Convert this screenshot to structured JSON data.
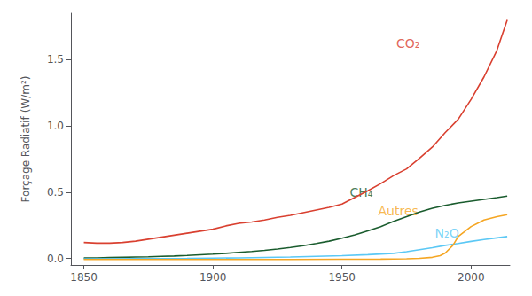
{
  "chart_data": {
    "type": "line",
    "ylabel": "Forçage Radiatif (W/m²)",
    "xlim": [
      1845,
      2015
    ],
    "ylim": [
      -0.05,
      1.85
    ],
    "xticks": [
      1850,
      1900,
      1950,
      2000
    ],
    "yticks": [
      {
        "value": 0.0,
        "label": "0.0"
      },
      0.5,
      {
        "value": 1.0,
        "label": "1.0"
      },
      1.5
    ],
    "grid": false,
    "series": [
      {
        "name": "CO₂",
        "color": "#d94030",
        "x": [
          1850,
          1855,
          1860,
          1865,
          1870,
          1875,
          1880,
          1885,
          1890,
          1895,
          1900,
          1905,
          1910,
          1915,
          1920,
          1925,
          1930,
          1935,
          1940,
          1945,
          1950,
          1955,
          1960,
          1965,
          1970,
          1975,
          1980,
          1985,
          1990,
          1995,
          2000,
          2005,
          2010,
          2014
        ],
        "values": [
          0.12,
          0.115,
          0.115,
          0.12,
          0.13,
          0.145,
          0.16,
          0.175,
          0.19,
          0.205,
          0.22,
          0.245,
          0.265,
          0.275,
          0.29,
          0.31,
          0.325,
          0.345,
          0.365,
          0.385,
          0.41,
          0.46,
          0.51,
          0.565,
          0.625,
          0.675,
          0.755,
          0.84,
          0.95,
          1.05,
          1.2,
          1.37,
          1.57,
          1.8
        ]
      },
      {
        "name": "CH₄",
        "color": "#1a5c2e",
        "x": [
          1850,
          1855,
          1860,
          1865,
          1870,
          1875,
          1880,
          1885,
          1890,
          1895,
          1900,
          1905,
          1910,
          1915,
          1920,
          1925,
          1930,
          1935,
          1940,
          1945,
          1950,
          1955,
          1960,
          1965,
          1970,
          1975,
          1980,
          1985,
          1990,
          1995,
          2000,
          2005,
          2010,
          2014
        ],
        "values": [
          0.003,
          0.004,
          0.006,
          0.008,
          0.01,
          0.012,
          0.015,
          0.018,
          0.022,
          0.027,
          0.032,
          0.038,
          0.045,
          0.052,
          0.06,
          0.07,
          0.082,
          0.096,
          0.112,
          0.13,
          0.152,
          0.178,
          0.208,
          0.24,
          0.28,
          0.315,
          0.35,
          0.378,
          0.4,
          0.418,
          0.432,
          0.445,
          0.458,
          0.47
        ]
      },
      {
        "name": "N₂O",
        "color": "#5bc8f5",
        "x": [
          1850,
          1860,
          1870,
          1880,
          1890,
          1900,
          1910,
          1920,
          1930,
          1940,
          1950,
          1960,
          1970,
          1975,
          1980,
          1985,
          1990,
          1995,
          2000,
          2005,
          2010,
          2014
        ],
        "values": [
          -0.004,
          -0.003,
          -0.002,
          -0.001,
          0.0,
          0.002,
          0.004,
          0.007,
          0.01,
          0.015,
          0.02,
          0.028,
          0.038,
          0.05,
          0.065,
          0.08,
          0.098,
          0.112,
          0.128,
          0.142,
          0.155,
          0.165
        ]
      },
      {
        "name": "Autres",
        "color": "#f5a623",
        "x": [
          1850,
          1870,
          1890,
          1910,
          1930,
          1950,
          1965,
          1970,
          1975,
          1980,
          1985,
          1988,
          1990,
          1993,
          1995,
          2000,
          2005,
          2010,
          2014
        ],
        "values": [
          -0.008,
          -0.008,
          -0.008,
          -0.008,
          -0.008,
          -0.007,
          -0.006,
          -0.005,
          -0.003,
          0.0,
          0.008,
          0.02,
          0.04,
          0.1,
          0.165,
          0.24,
          0.29,
          0.315,
          0.33
        ]
      }
    ],
    "annotations": [
      {
        "text": "CO₂",
        "x": 1971,
        "y": 1.62,
        "color": "#d94030"
      },
      {
        "text": "CH₄",
        "x": 1953,
        "y": 0.5,
        "color": "#1a5c2e"
      },
      {
        "text": "N₂O",
        "x": 1986,
        "y": 0.19,
        "color": "#5bc8f5"
      },
      {
        "text": "Autres",
        "x": 1964,
        "y": 0.355,
        "color": "#f5a623"
      }
    ]
  }
}
